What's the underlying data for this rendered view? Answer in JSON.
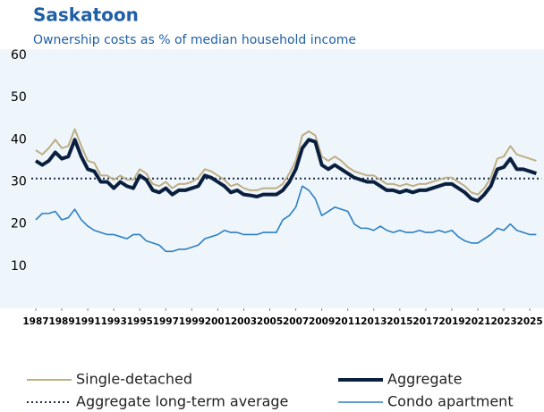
{
  "chart_data": {
    "type": "line",
    "title": "Saskatoon",
    "subtitle": "Ownership costs as % of median household income",
    "x": [
      1987,
      1987.5,
      1988,
      1988.5,
      1989,
      1989.5,
      1990,
      1990.5,
      1991,
      1991.5,
      1992,
      1992.5,
      1993,
      1993.5,
      1994,
      1994.5,
      1995,
      1995.5,
      1996,
      1996.5,
      1997,
      1997.5,
      1998,
      1998.5,
      1999,
      1999.5,
      2000,
      2000.5,
      2001,
      2001.5,
      2002,
      2002.5,
      2003,
      2003.5,
      2004,
      2004.5,
      2005,
      2005.5,
      2006,
      2006.5,
      2007,
      2007.5,
      2008,
      2008.5,
      2009,
      2009.5,
      2010,
      2010.5,
      2011,
      2011.5,
      2012,
      2012.5,
      2013,
      2013.5,
      2014,
      2014.5,
      2015,
      2015.5,
      2016,
      2016.5,
      2017,
      2017.5,
      2018,
      2018.5,
      2019,
      2019.5,
      2020,
      2020.5,
      2021,
      2021.5,
      2022,
      2022.5,
      2023,
      2023.5,
      2024,
      2024.5,
      2025,
      2025.5
    ],
    "series": [
      {
        "name": "Single-detached",
        "color": "#bfae85",
        "width": 2,
        "values": [
          37.5,
          36.5,
          38,
          40,
          38,
          38.5,
          42.5,
          38.5,
          35,
          34.5,
          31.5,
          31.5,
          30.5,
          31.5,
          30.5,
          30.5,
          33,
          32,
          29.5,
          29,
          30,
          28.5,
          29.5,
          29.5,
          30,
          31,
          33,
          32.5,
          31.5,
          30.5,
          29,
          29.5,
          28.5,
          28,
          28,
          28.5,
          28.5,
          28.5,
          29.5,
          32,
          35,
          41,
          42,
          41,
          36,
          35,
          36,
          35,
          33.5,
          32.5,
          32,
          31.5,
          31.5,
          30.5,
          29.5,
          29.5,
          29,
          29.5,
          29,
          29.5,
          29.5,
          30,
          30.5,
          31,
          31,
          30,
          29,
          27.5,
          27,
          28.5,
          31,
          35.5,
          36,
          38.5,
          36.5,
          36,
          35.5,
          35
        ]
      },
      {
        "name": "Aggregate",
        "color": "#0b1f3f",
        "width": 4,
        "values": [
          35,
          34,
          35,
          37,
          35.5,
          36,
          40,
          36,
          33,
          32.5,
          30,
          30,
          28.5,
          30,
          29,
          28.5,
          31.5,
          30.5,
          28,
          27.5,
          28.5,
          27,
          28,
          28,
          28.5,
          29,
          31.5,
          31,
          30,
          29,
          27.5,
          28,
          27,
          26.8,
          26.5,
          27,
          27,
          27,
          28,
          30,
          33,
          38,
          40,
          39.5,
          34,
          33,
          34,
          33,
          32,
          31,
          30.5,
          30,
          30,
          29,
          28,
          28,
          27.5,
          28,
          27.5,
          28,
          28,
          28.5,
          29,
          29.5,
          29.5,
          28.5,
          27.5,
          26,
          25.5,
          27,
          29,
          33,
          33.5,
          35.5,
          33,
          33,
          32.5,
          32
        ]
      },
      {
        "name": "Condo apartment",
        "color": "#2e7fc1",
        "width": 1.6,
        "values": [
          21,
          22.5,
          22.5,
          23,
          21,
          21.5,
          23.5,
          21,
          19.5,
          18.5,
          18,
          17.5,
          17.5,
          17,
          16.5,
          17.5,
          17.5,
          16,
          15.5,
          15,
          13.5,
          13.5,
          14,
          14,
          14.5,
          15,
          16.5,
          17,
          17.5,
          18.5,
          18,
          18,
          17.5,
          17.5,
          17.5,
          18,
          18,
          18,
          21,
          22,
          24,
          29,
          28,
          26,
          22,
          23,
          24,
          23.5,
          23,
          20,
          19,
          19,
          18.5,
          19.5,
          18.5,
          18,
          18.5,
          18,
          18,
          18.5,
          18,
          18,
          18.5,
          18,
          18.5,
          17,
          16,
          15.5,
          15.5,
          16.5,
          17.5,
          19,
          18.5,
          20,
          18.5,
          18,
          17.5,
          17.5
        ]
      }
    ],
    "reference_line": {
      "name": "Aggregate long-term average",
      "value": 30.8,
      "color": "#1a2b4a"
    },
    "xlim": [
      1987,
      2025.9
    ],
    "xticks": [
      1987,
      1989,
      1991,
      1993,
      1995,
      1997,
      1999,
      2001,
      2003,
      2005,
      2007,
      2009,
      2011,
      2013,
      2015,
      2017,
      2019,
      2021,
      2023,
      2025
    ],
    "ylim": [
      0,
      60
    ],
    "yticks": [
      10,
      20,
      30,
      40,
      50,
      60
    ],
    "grid": false
  }
}
